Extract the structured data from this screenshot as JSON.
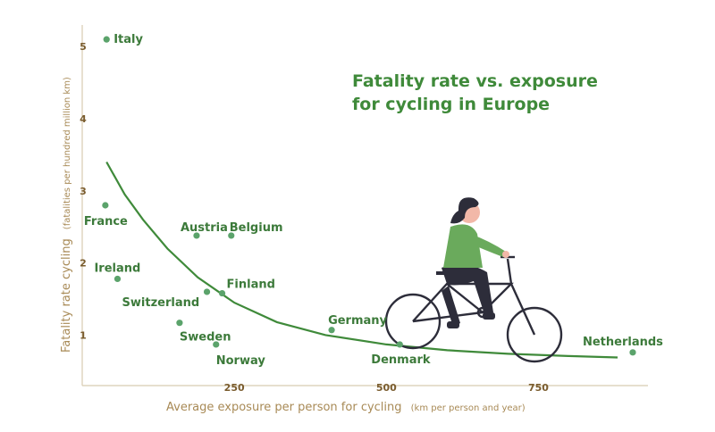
{
  "chart_data": {
    "type": "scatter",
    "title_lines": [
      "Fatality rate vs. exposure",
      "for cycling in Europe"
    ],
    "xlabel": "Average exposure per person for cycling",
    "xlabel_unit": "(km per person and year)",
    "ylabel": "Fatality rate cycling",
    "ylabel_unit": "(fatalities per hundred million km)",
    "xlim": [
      0,
      930
    ],
    "ylim": [
      0.3,
      5.3
    ],
    "x_ticks": [
      {
        "value": 250,
        "label": "250"
      },
      {
        "value": 500,
        "label": "500"
      },
      {
        "value": 750,
        "label": "750"
      }
    ],
    "y_ticks": [
      {
        "value": 1,
        "label": "1"
      },
      {
        "value": 2,
        "label": "2"
      },
      {
        "value": 3,
        "label": "3"
      },
      {
        "value": 4,
        "label": "4"
      },
      {
        "value": 5,
        "label": "5"
      }
    ],
    "points": [
      {
        "name": "Italy",
        "x": 40,
        "y": 5.1
      },
      {
        "name": "France",
        "x": 38,
        "y": 2.8
      },
      {
        "name": "Austria",
        "x": 188,
        "y": 2.38
      },
      {
        "name": "Belgium",
        "x": 245,
        "y": 2.38
      },
      {
        "name": "Ireland",
        "x": 58,
        "y": 1.78
      },
      {
        "name": "Switzerland",
        "x": 205,
        "y": 1.6
      },
      {
        "name": "Finland",
        "x": 230,
        "y": 1.58
      },
      {
        "name": "Sweden",
        "x": 160,
        "y": 1.17
      },
      {
        "name": "Norway",
        "x": 220,
        "y": 0.87
      },
      {
        "name": "Germany",
        "x": 410,
        "y": 1.07
      },
      {
        "name": "Denmark",
        "x": 522,
        "y": 0.87
      },
      {
        "name": "Netherlands",
        "x": 905,
        "y": 0.76
      }
    ],
    "trend": [
      [
        40,
        3.4
      ],
      [
        70,
        2.95
      ],
      [
        100,
        2.6
      ],
      [
        140,
        2.2
      ],
      [
        190,
        1.8
      ],
      [
        250,
        1.45
      ],
      [
        320,
        1.18
      ],
      [
        400,
        1.0
      ],
      [
        500,
        0.87
      ],
      [
        600,
        0.79
      ],
      [
        700,
        0.74
      ],
      [
        800,
        0.71
      ],
      [
        880,
        0.69
      ]
    ],
    "colors": {
      "points": "#5ba36b",
      "trend": "#3f8a3a",
      "axis": "#d8ccb0",
      "title": "#3f8a3a"
    },
    "grid": false,
    "legend": "none"
  }
}
